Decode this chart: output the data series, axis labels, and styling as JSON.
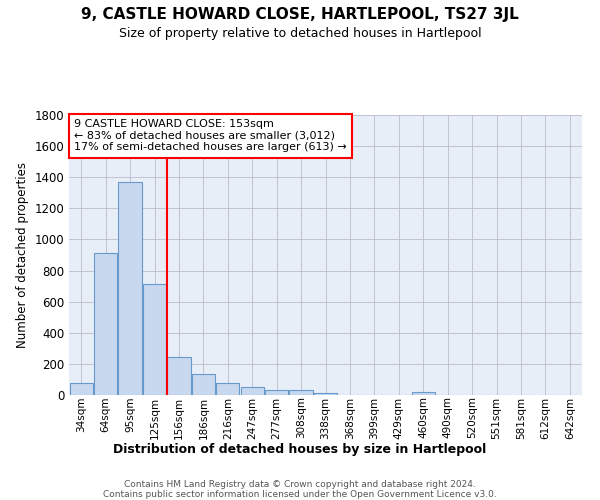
{
  "title": "9, CASTLE HOWARD CLOSE, HARTLEPOOL, TS27 3JL",
  "subtitle": "Size of property relative to detached houses in Hartlepool",
  "xlabel": "Distribution of detached houses by size in Hartlepool",
  "ylabel": "Number of detached properties",
  "bar_labels": [
    "34sqm",
    "64sqm",
    "95sqm",
    "125sqm",
    "156sqm",
    "186sqm",
    "216sqm",
    "247sqm",
    "277sqm",
    "308sqm",
    "338sqm",
    "368sqm",
    "399sqm",
    "429sqm",
    "460sqm",
    "490sqm",
    "520sqm",
    "551sqm",
    "581sqm",
    "612sqm",
    "642sqm"
  ],
  "bar_values": [
    80,
    915,
    1370,
    715,
    245,
    135,
    80,
    50,
    30,
    30,
    15,
    0,
    0,
    0,
    20,
    0,
    0,
    0,
    0,
    0,
    0
  ],
  "bar_color": "#c8d8ee",
  "bar_edgecolor": "#6699cc",
  "grid_color": "#bbbbcc",
  "vline_color": "red",
  "vline_index": 4,
  "annotation_text": "9 CASTLE HOWARD CLOSE: 153sqm\n← 83% of detached houses are smaller (3,012)\n17% of semi-detached houses are larger (613) →",
  "annotation_box_edgecolor": "red",
  "annotation_facecolor": "white",
  "ylim": [
    0,
    1800
  ],
  "yticks": [
    0,
    200,
    400,
    600,
    800,
    1000,
    1200,
    1400,
    1600,
    1800
  ],
  "footer_text": "Contains HM Land Registry data © Crown copyright and database right 2024.\nContains public sector information licensed under the Open Government Licence v3.0.",
  "background_color": "#ffffff",
  "plot_bg_color": "#e8eef8"
}
